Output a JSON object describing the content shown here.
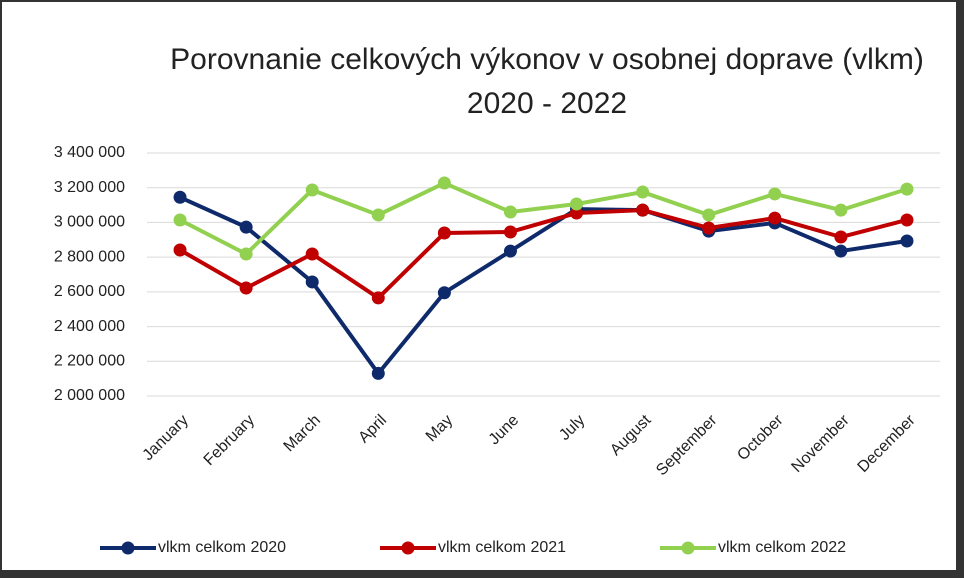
{
  "chart_data": {
    "type": "line",
    "title": "Porovnanie celkových výkonov v osobnej doprave (vlkm) 2020 - 2022",
    "categories": [
      "January",
      "February",
      "March",
      "April",
      "May",
      "June",
      "July",
      "August",
      "September",
      "October",
      "November",
      "December"
    ],
    "series": [
      {
        "name": "vlkm celkom 2020",
        "color": "#0e2a6b",
        "values": [
          3145000,
          2973000,
          2657000,
          2130000,
          2595000,
          2835000,
          3077000,
          3071000,
          2950000,
          2997000,
          2835000,
          2893000
        ]
      },
      {
        "name": "vlkm celkom 2021",
        "color": "#c00000",
        "values": [
          2841000,
          2622000,
          2818000,
          2565000,
          2939000,
          2945000,
          3054000,
          3071000,
          2968000,
          3025000,
          2916000,
          3014000
        ]
      },
      {
        "name": "vlkm celkom 2022",
        "color": "#92d050",
        "values": [
          3014000,
          2818000,
          3187000,
          3043000,
          3227000,
          3060000,
          3106000,
          3175000,
          3043000,
          3164000,
          3071000,
          3192000
        ]
      }
    ],
    "ylim": [
      2000000,
      3400000
    ],
    "yticks": [
      {
        "value": 2000000,
        "label": "2 000 000"
      },
      {
        "value": 2200000,
        "label": "2 200 000"
      },
      {
        "value": 2400000,
        "label": "2 400 000"
      },
      {
        "value": 2600000,
        "label": "2 600 000"
      },
      {
        "value": 2800000,
        "label": "2 800 000"
      },
      {
        "value": 3000000,
        "label": "3 000 000"
      },
      {
        "value": 3200000,
        "label": "3 200 000"
      },
      {
        "value": 3400000,
        "label": "3 400 000"
      }
    ],
    "grid": true,
    "legend": "bottom"
  }
}
